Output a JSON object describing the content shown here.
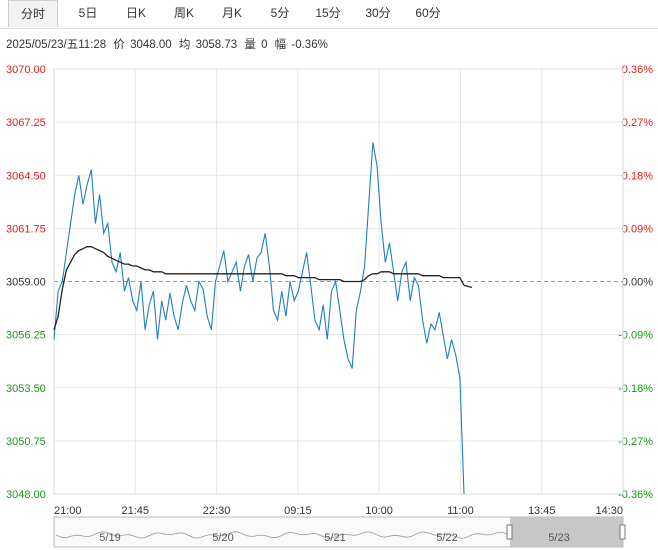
{
  "tabs": [
    {
      "label": "分时",
      "active": true
    },
    {
      "label": "5日",
      "active": false
    },
    {
      "label": "日K",
      "active": false
    },
    {
      "label": "周K",
      "active": false
    },
    {
      "label": "月K",
      "active": false
    },
    {
      "label": "5分",
      "active": false
    },
    {
      "label": "15分",
      "active": false
    },
    {
      "label": "30分",
      "active": false
    },
    {
      "label": "60分",
      "active": false
    }
  ],
  "info": {
    "datetime": "2025/05/23/五11:28",
    "price_label": "价",
    "price": "3048.00",
    "avg_label": "均",
    "avg": "3058.73",
    "vol_label": "量",
    "vol": "0",
    "chg_label": "幅",
    "chg": "-0.36%"
  },
  "colors": {
    "up": "#e0201e",
    "down": "#1a9a1a",
    "price_line": "#1f7fc0",
    "avg_line": "#222222",
    "grid": "#e6e6e6"
  },
  "chart_data": {
    "type": "line",
    "y_ticks": [
      "3070.00",
      "3067.25",
      "3064.50",
      "3061.75",
      "3059.00",
      "3056.25",
      "3053.50",
      "3050.75",
      "3048.00"
    ],
    "pct_ticks": [
      "0.36%",
      "0.27%",
      "0.18%",
      "0.09%",
      "0.00%",
      "-0.09%",
      "-0.18%",
      "-0.27%",
      "-0.36%"
    ],
    "x_ticks": [
      "21:00",
      "21:45",
      "22:30",
      "09:15",
      "10:00",
      "11:00",
      "13:45",
      "14:30"
    ],
    "ylim": [
      3048.0,
      3070.0
    ],
    "baseline": 3059.0,
    "nav_dates": [
      "5/19",
      "5/20",
      "5/21",
      "5/22",
      "5/23"
    ],
    "series": [
      {
        "values": [
          3056.0,
          3058.5,
          3059.0,
          3060.5,
          3062.0,
          3063.5,
          3064.5,
          3063.0,
          3064.0,
          3064.8,
          3062.0,
          3063.5,
          3061.5,
          3062.0,
          3060.0,
          3059.5,
          3060.5,
          3058.5,
          3059.2,
          3058.0,
          3057.5,
          3059.0,
          3056.5,
          3057.8,
          3058.5,
          3056.0,
          3058.0,
          3057.0,
          3058.4,
          3057.2,
          3056.5,
          3057.9,
          3058.8,
          3058.0,
          3057.5,
          3059.0,
          3058.6,
          3057.2,
          3056.5,
          3059.0,
          3059.8,
          3060.6,
          3059.0,
          3059.5,
          3060.0,
          3058.5,
          3059.8,
          3060.4,
          3059.0,
          3060.2,
          3060.5,
          3061.5,
          3059.8,
          3057.5,
          3057.0,
          3058.5,
          3057.2,
          3059.0,
          3058.0,
          3058.5,
          3059.5,
          3060.5,
          3058.8,
          3057.0,
          3056.5,
          3057.8,
          3056.0,
          3058.5,
          3059.0,
          3057.5,
          3056.0,
          3055.0,
          3054.5,
          3057.5,
          3058.5,
          3059.8,
          3063.0,
          3066.2,
          3065.0,
          3062.0,
          3060.0,
          3061.0,
          3059.5,
          3058.0,
          3059.5,
          3060.0,
          3058.0,
          3059.2,
          3058.8,
          3057.0,
          3055.8,
          3056.8,
          3056.5,
          3057.4,
          3056.2,
          3055.0,
          3056.0,
          3055.2,
          3054.0,
          3048.0
        ],
        "name": ""
      },
      {
        "values": [
          3056.5,
          3057.2,
          3058.6,
          3059.6,
          3060.0,
          3060.4,
          3060.6,
          3060.7,
          3060.8,
          3060.8,
          3060.7,
          3060.6,
          3060.5,
          3060.3,
          3060.2,
          3060.1,
          3060.0,
          3059.9,
          3059.9,
          3059.8,
          3059.8,
          3059.7,
          3059.6,
          3059.6,
          3059.5,
          3059.5,
          3059.5,
          3059.4,
          3059.4,
          3059.4,
          3059.4,
          3059.4,
          3059.4,
          3059.4,
          3059.4,
          3059.4,
          3059.4,
          3059.4,
          3059.4,
          3059.4,
          3059.4,
          3059.4,
          3059.4,
          3059.4,
          3059.4,
          3059.4,
          3059.4,
          3059.4,
          3059.4,
          3059.4,
          3059.4,
          3059.4,
          3059.4,
          3059.4,
          3059.4,
          3059.4,
          3059.3,
          3059.3,
          3059.3,
          3059.2,
          3059.2,
          3059.2,
          3059.2,
          3059.2,
          3059.1,
          3059.1,
          3059.1,
          3059.1,
          3059.1,
          3059.1,
          3059.0,
          3059.0,
          3059.0,
          3059.0,
          3059.0,
          3059.1,
          3059.3,
          3059.4,
          3059.4,
          3059.5,
          3059.5,
          3059.5,
          3059.4,
          3059.4,
          3059.4,
          3059.4,
          3059.4,
          3059.4,
          3059.4,
          3059.3,
          3059.3,
          3059.3,
          3059.3,
          3059.3,
          3059.2,
          3059.2,
          3059.2,
          3059.2,
          3059.2,
          3058.8
        ],
        "name": ""
      }
    ]
  }
}
